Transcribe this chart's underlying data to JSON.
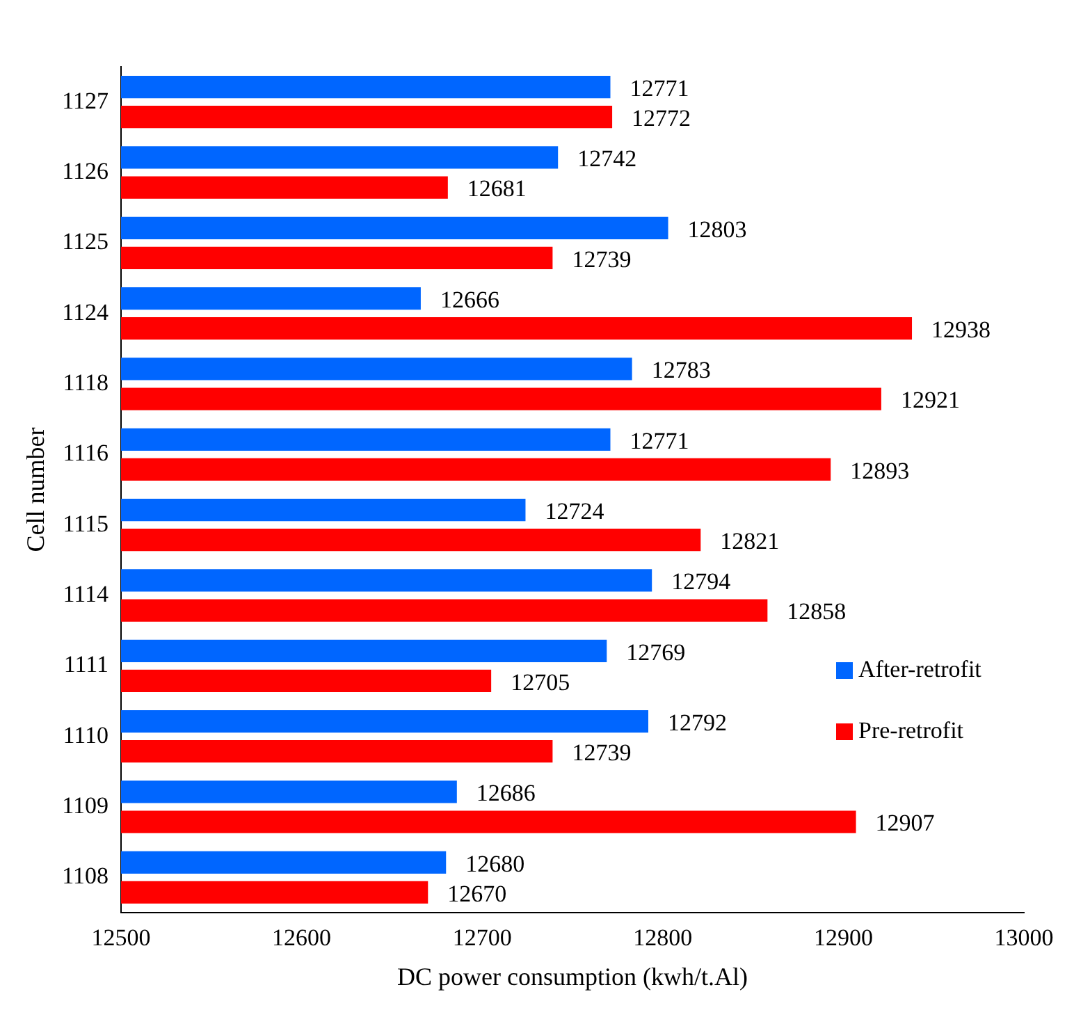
{
  "chart_data": {
    "type": "bar",
    "orientation": "horizontal",
    "xlabel": "DC power consumption (kwh/t.Al)",
    "ylabel": "Cell number",
    "categories": [
      "1127",
      "1126",
      "1125",
      "1124",
      "1118",
      "1116",
      "1115",
      "1114",
      "1111",
      "1110",
      "1109",
      "1108"
    ],
    "series": [
      {
        "name": "After-retrofit",
        "color": "#0066ff",
        "values": [
          12771,
          12742,
          12803,
          12666,
          12783,
          12771,
          12724,
          12794,
          12769,
          12792,
          12686,
          12680
        ]
      },
      {
        "name": "Pre-retrofit",
        "color": "#ff0000",
        "values": [
          12772,
          12681,
          12739,
          12938,
          12921,
          12893,
          12821,
          12858,
          12705,
          12739,
          12907,
          12670
        ]
      }
    ],
    "xlim": [
      12500,
      13000
    ],
    "xticks": [
      12500,
      12600,
      12700,
      12800,
      12900,
      13000
    ],
    "data_labels": true,
    "grid": false,
    "legend": "right"
  }
}
